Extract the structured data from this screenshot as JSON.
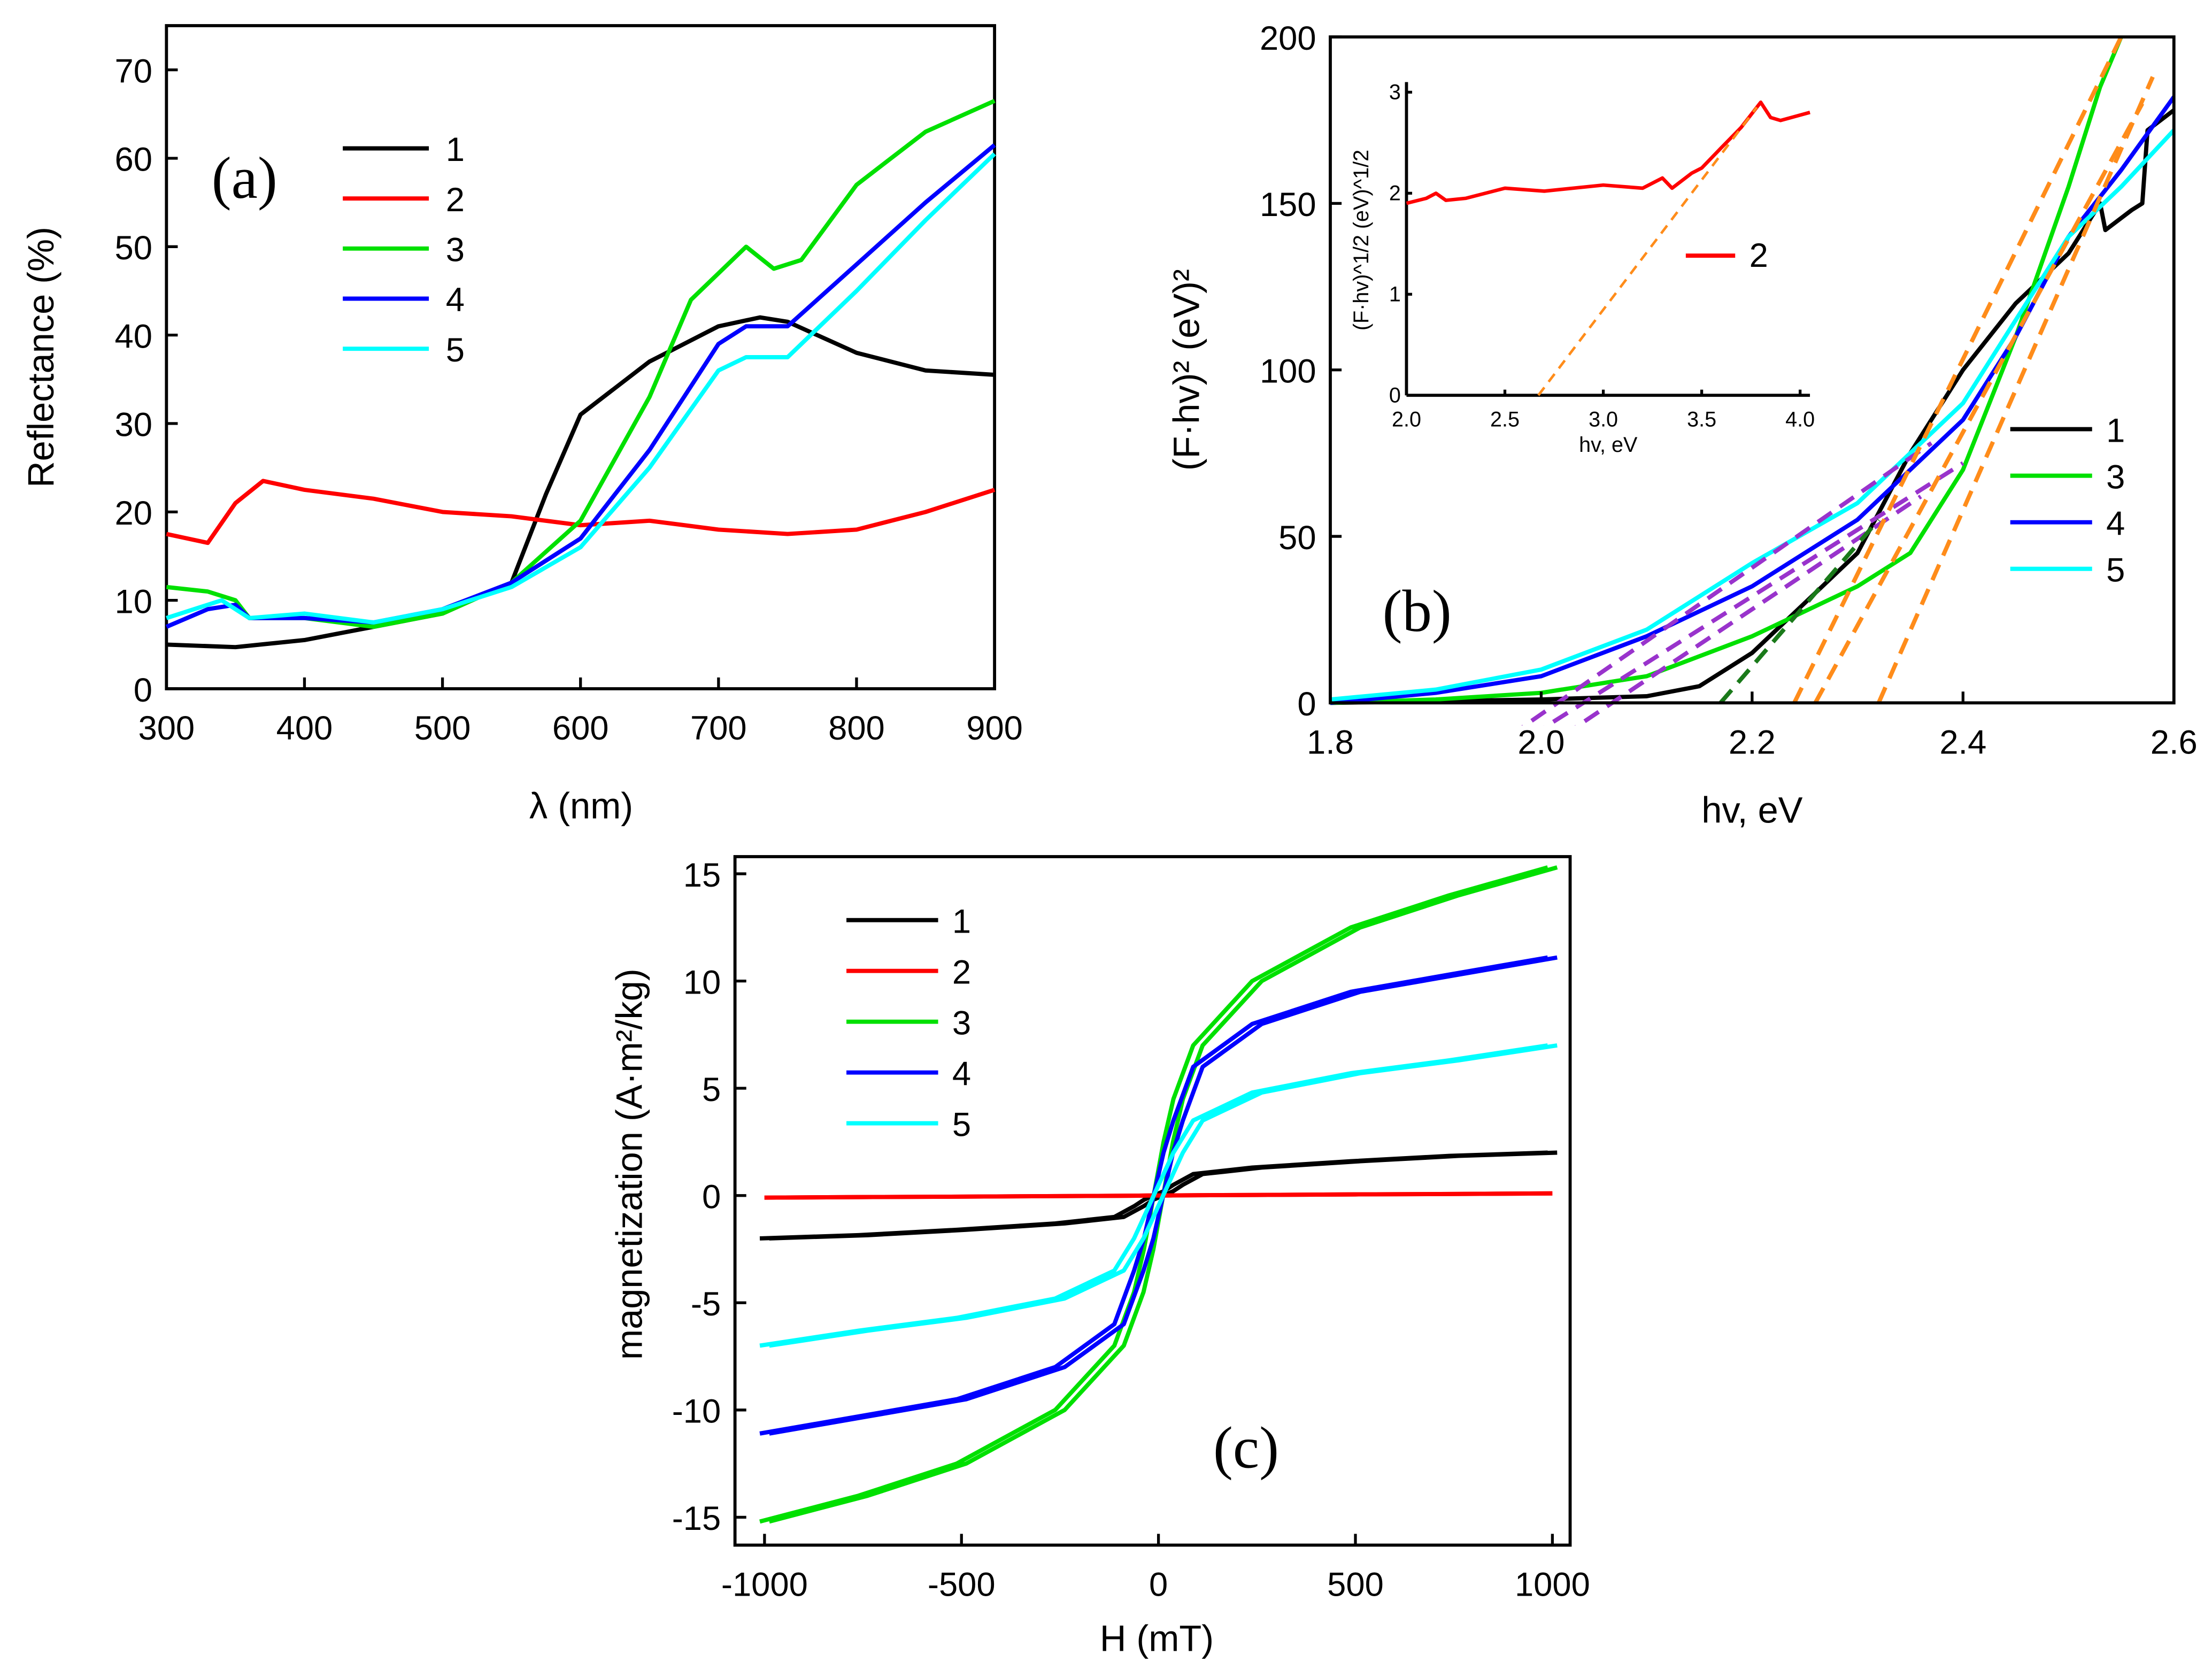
{
  "chart_data": [
    {
      "id": "a",
      "type": "line",
      "panel_label": "(a)",
      "xlabel": "λ (nm)",
      "ylabel": "Reflectance (%)",
      "xlim": [
        300,
        900
      ],
      "ylim": [
        0,
        75
      ],
      "xticks": [
        300,
        400,
        500,
        600,
        700,
        800,
        900
      ],
      "yticks": [
        0,
        10,
        20,
        30,
        40,
        50,
        60,
        70
      ],
      "legend": "top-left",
      "series": [
        {
          "name": "1",
          "color": "#000000",
          "x": [
            300,
            350,
            400,
            450,
            500,
            550,
            575,
            600,
            650,
            700,
            730,
            750,
            800,
            850,
            900
          ],
          "y": [
            5,
            4.7,
            5.5,
            7,
            8.5,
            12,
            22,
            31,
            37,
            41,
            42,
            41.5,
            38,
            36,
            35.5
          ]
        },
        {
          "name": "2",
          "color": "#ff0000",
          "x": [
            300,
            330,
            350,
            370,
            400,
            450,
            500,
            550,
            600,
            650,
            700,
            750,
            800,
            850,
            900
          ],
          "y": [
            17.5,
            16.5,
            21,
            23.5,
            22.5,
            21.5,
            20,
            19.5,
            18.5,
            19,
            18,
            17.5,
            18,
            20,
            22.5
          ]
        },
        {
          "name": "3",
          "color": "#00e000",
          "x": [
            300,
            330,
            350,
            360,
            400,
            450,
            500,
            550,
            600,
            650,
            680,
            720,
            740,
            760,
            800,
            850,
            900
          ],
          "y": [
            11.5,
            11,
            10,
            8,
            8,
            7,
            8.5,
            12,
            19,
            33,
            44,
            50,
            47.5,
            48.5,
            57,
            63,
            66.5
          ]
        },
        {
          "name": "4",
          "color": "#0000ff",
          "x": [
            300,
            330,
            350,
            360,
            400,
            450,
            500,
            550,
            600,
            650,
            700,
            720,
            750,
            800,
            850,
            900
          ],
          "y": [
            7,
            9,
            9.5,
            8,
            8,
            7.5,
            9,
            12,
            17,
            27,
            39,
            41,
            41,
            48,
            55,
            61.5
          ]
        },
        {
          "name": "5",
          "color": "#00ffff",
          "x": [
            300,
            340,
            360,
            400,
            450,
            500,
            550,
            600,
            650,
            700,
            720,
            750,
            800,
            850,
            900
          ],
          "y": [
            8,
            10,
            8,
            8.5,
            7.5,
            9,
            11.5,
            16,
            25,
            36,
            37.5,
            37.5,
            45,
            53,
            60.5
          ]
        }
      ]
    },
    {
      "id": "b",
      "type": "line",
      "panel_label": "(b)",
      "xlabel": "hv, eV",
      "ylabel": "(F·hv)² (eV)²",
      "xlim": [
        1.8,
        2.6
      ],
      "ylim": [
        0,
        200
      ],
      "xticks": [
        "1.8",
        "2.0",
        "2.2",
        "2.4",
        "2.6"
      ],
      "yticks": [
        0,
        50,
        100,
        150,
        200
      ],
      "legend": "right",
      "series": [
        {
          "name": "1",
          "color": "#000000",
          "x": [
            1.8,
            2.0,
            2.1,
            2.15,
            2.2,
            2.3,
            2.35,
            2.4,
            2.45,
            2.5,
            2.53,
            2.535,
            2.56,
            2.57,
            2.575,
            2.6
          ],
          "y": [
            0,
            1,
            2,
            5,
            15,
            45,
            75,
            100,
            120,
            135,
            150,
            142,
            148,
            150,
            172,
            178
          ]
        },
        {
          "name": "3",
          "color": "#00e000",
          "x": [
            1.8,
            1.9,
            2.0,
            2.1,
            2.2,
            2.3,
            2.35,
            2.4,
            2.45,
            2.5,
            2.53,
            2.55
          ],
          "y": [
            0,
            1,
            3,
            8,
            20,
            35,
            45,
            70,
            110,
            155,
            185,
            200
          ]
        },
        {
          "name": "4",
          "color": "#0000ff",
          "x": [
            1.8,
            1.9,
            2.0,
            2.1,
            2.2,
            2.3,
            2.35,
            2.4,
            2.45,
            2.5,
            2.55,
            2.6
          ],
          "y": [
            0,
            3,
            8,
            20,
            35,
            55,
            70,
            85,
            110,
            140,
            160,
            182
          ]
        },
        {
          "name": "5",
          "color": "#00ffff",
          "x": [
            1.8,
            1.9,
            2.0,
            2.1,
            2.2,
            2.3,
            2.35,
            2.4,
            2.45,
            2.5,
            2.55,
            2.6
          ],
          "y": [
            1,
            4,
            10,
            22,
            42,
            60,
            75,
            90,
            115,
            140,
            155,
            172
          ]
        }
      ],
      "fit_lines": [
        {
          "color": "#9933cc",
          "x": [
            1.97,
            2.37
          ],
          "y": [
            -10,
            78
          ]
        },
        {
          "color": "#9933cc",
          "x": [
            1.99,
            2.4
          ],
          "y": [
            -10,
            72
          ]
        },
        {
          "color": "#9933cc",
          "x": [
            2.02,
            2.36
          ],
          "y": [
            -10,
            62
          ]
        },
        {
          "color": "#1a7a1a",
          "x": [
            2.17,
            2.32
          ],
          "y": [
            0,
            55
          ]
        },
        {
          "color": "#ff8c1a",
          "x": [
            2.24,
            2.55
          ],
          "y": [
            0,
            200
          ]
        },
        {
          "color": "#ff8c1a",
          "x": [
            2.26,
            2.57
          ],
          "y": [
            0,
            180
          ]
        },
        {
          "color": "#ff8c1a",
          "x": [
            2.32,
            2.58
          ],
          "y": [
            0,
            188
          ]
        }
      ],
      "inset": {
        "xlabel": "hv, eV",
        "ylabel": "(F·hv)^1/2 (eV)^1/2",
        "xlim": [
          2.0,
          4.05
        ],
        "ylim": [
          0,
          3.1
        ],
        "xticks": [
          "2.0",
          "2.5",
          "3.0",
          "3.5",
          "4.0"
        ],
        "yticks": [
          0,
          1,
          2,
          3
        ],
        "series": [
          {
            "name": "2",
            "color": "#ff0000",
            "x": [
              2.0,
              2.1,
              2.15,
              2.2,
              2.3,
              2.5,
              2.7,
              3.0,
              3.2,
              3.3,
              3.35,
              3.45,
              3.5,
              3.6,
              3.7,
              3.8,
              3.85,
              3.9,
              4.05
            ],
            "y": [
              1.9,
              1.95,
              2.0,
              1.93,
              1.95,
              2.05,
              2.02,
              2.08,
              2.05,
              2.15,
              2.05,
              2.2,
              2.25,
              2.45,
              2.65,
              2.9,
              2.75,
              2.72,
              2.8
            ]
          }
        ],
        "fit_line": {
          "color": "#ff8c1a",
          "x": [
            2.67,
            3.78
          ],
          "y": [
            0,
            2.85
          ]
        }
      }
    },
    {
      "id": "c",
      "type": "line",
      "panel_label": "(c)",
      "xlabel": "H (mT)",
      "ylabel": "magnetization (A·m²/kg)",
      "xlim": [
        -1000,
        1000
      ],
      "ylim": [
        -15.5,
        15.5
      ],
      "xticks": [
        -1000,
        -500,
        0,
        500,
        1000
      ],
      "yticks": [
        -15,
        -10,
        -5,
        0,
        5,
        10,
        15
      ],
      "legend": "top-left",
      "x": [
        -1000,
        -750,
        -500,
        -250,
        -100,
        -50,
        -25,
        0,
        25,
        50,
        100,
        250,
        500,
        750,
        1000
      ],
      "series": [
        {
          "name": "1",
          "color": "#000000",
          "y": [
            -2,
            -1.85,
            -1.6,
            -1.3,
            -1,
            -0.5,
            -0.2,
            0,
            0.2,
            0.5,
            1,
            1.3,
            1.6,
            1.85,
            2
          ]
        },
        {
          "name": "2",
          "color": "#ff0000",
          "y": [
            -0.1,
            -0.075,
            -0.05,
            -0.025,
            -0.01,
            -0.005,
            -0.0025,
            0,
            0.0025,
            0.005,
            0.01,
            0.025,
            0.05,
            0.075,
            0.1
          ]
        },
        {
          "name": "3",
          "color": "#00e000",
          "y": [
            -15.2,
            -14,
            -12.5,
            -10,
            -7,
            -4.5,
            -2.5,
            0,
            2.5,
            4.5,
            7,
            10,
            12.5,
            14,
            15.3
          ]
        },
        {
          "name": "4",
          "color": "#0000ff",
          "y": [
            -11.1,
            -10.3,
            -9.5,
            -8,
            -6,
            -3.5,
            -2,
            0,
            2,
            3.5,
            6,
            8,
            9.5,
            10.3,
            11.1
          ]
        },
        {
          "name": "5",
          "color": "#00ffff",
          "y": [
            -7,
            -6.3,
            -5.7,
            -4.8,
            -3.5,
            -2,
            -1,
            0,
            1,
            2,
            3.5,
            4.8,
            5.7,
            6.3,
            7
          ]
        }
      ]
    }
  ]
}
